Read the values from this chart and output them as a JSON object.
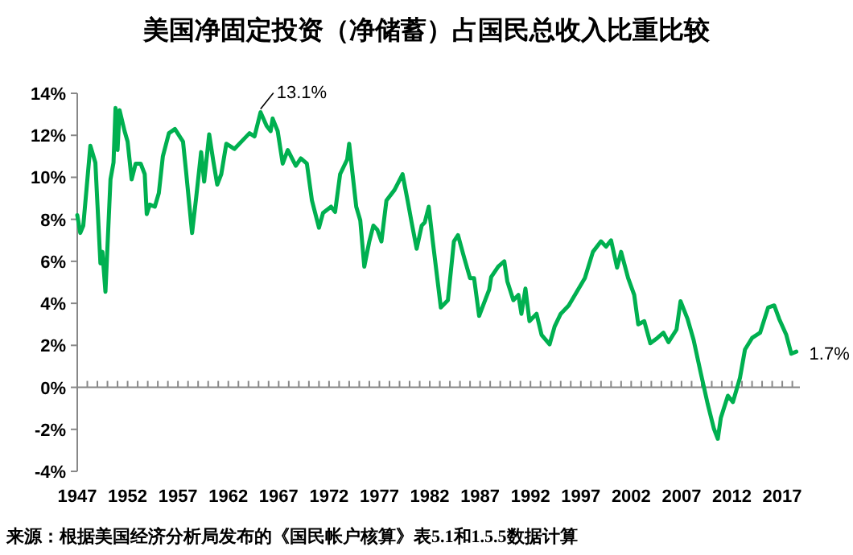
{
  "chart_data": {
    "type": "line",
    "title": "美国净固定投资（净储蓄）占国民总收入比重比较",
    "x": [
      1947,
      1947.3,
      1947.6,
      1948.3,
      1948.8,
      1949.3,
      1949.5,
      1949.8,
      1950.3,
      1950.6,
      1950.8,
      1951.0,
      1951.2,
      1951.7,
      1952.0,
      1952.4,
      1952.8,
      1953.3,
      1953.7,
      1953.9,
      1954.2,
      1954.7,
      1955.1,
      1955.5,
      1956.1,
      1956.7,
      1957.5,
      1957.8,
      1958.4,
      1958.8,
      1959.3,
      1959.6,
      1960.1,
      1960.5,
      1960.9,
      1961.3,
      1961.8,
      1962.6,
      1963.6,
      1964.1,
      1964.6,
      1965.2,
      1965.8,
      1966.2,
      1966.4,
      1966.9,
      1967.4,
      1967.9,
      1968.7,
      1969.2,
      1969.8,
      1970.3,
      1971.0,
      1971.4,
      1972.2,
      1972.6,
      1973.1,
      1973.8,
      1974.0,
      1974.7,
      1975.1,
      1975.5,
      1976.0,
      1976.4,
      1976.8,
      1977.2,
      1977.7,
      1978.5,
      1979.3,
      1979.8,
      1980.2,
      1980.7,
      1981.2,
      1981.5,
      1981.9,
      1982.3,
      1983.1,
      1983.8,
      1984.4,
      1984.8,
      1985.4,
      1986.0,
      1986.4,
      1986.9,
      1987.5,
      1987.9,
      1988.1,
      1988.8,
      1989.4,
      1989.7,
      1990.3,
      1990.8,
      1991.1,
      1991.5,
      1991.9,
      1992.6,
      1993.1,
      1993.9,
      1994.4,
      1995.0,
      1995.8,
      1996.6,
      1997.4,
      1998.2,
      1999.0,
      1999.5,
      2000.0,
      2000.6,
      2001.0,
      2001.7,
      2002.3,
      2002.7,
      2003.3,
      2003.9,
      2004.6,
      2005.2,
      2005.7,
      2006.5,
      2006.9,
      2007.6,
      2008.2,
      2008.9,
      2009.6,
      2010.2,
      2010.6,
      2010.9,
      2011.6,
      2012.1,
      2012.8,
      2013.3,
      2014.0,
      2014.8,
      2015.6,
      2016.2,
      2016.7,
      2017.4,
      2017.9,
      2018.4
    ],
    "series": [
      {
        "color": "#00b050",
        "values": [
          8.2,
          7.35,
          7.7,
          11.5,
          10.7,
          5.9,
          6.45,
          4.55,
          9.9,
          10.7,
          13.3,
          11.3,
          13.2,
          12.2,
          11.7,
          9.9,
          10.65,
          10.65,
          10.15,
          8.25,
          8.7,
          8.6,
          9.25,
          11.0,
          12.1,
          12.3,
          11.7,
          10.3,
          7.35,
          9.0,
          11.2,
          9.8,
          12.05,
          10.8,
          9.65,
          10.15,
          11.6,
          11.35,
          11.85,
          12.1,
          11.95,
          13.1,
          12.45,
          12.2,
          12.8,
          12.2,
          10.65,
          11.3,
          10.55,
          10.9,
          10.65,
          8.9,
          7.6,
          8.3,
          8.6,
          8.35,
          10.15,
          10.85,
          11.6,
          8.6,
          7.95,
          5.75,
          6.95,
          7.7,
          7.5,
          6.95,
          8.9,
          9.4,
          10.15,
          8.9,
          7.85,
          6.6,
          7.7,
          7.85,
          8.6,
          6.95,
          3.8,
          4.15,
          6.95,
          7.25,
          6.2,
          5.2,
          5.2,
          3.4,
          4.15,
          4.65,
          5.25,
          5.75,
          6.0,
          5.05,
          4.15,
          4.4,
          3.5,
          4.7,
          3.15,
          3.5,
          2.5,
          2.05,
          2.9,
          3.5,
          3.9,
          4.55,
          5.2,
          6.45,
          6.95,
          6.7,
          7.0,
          5.7,
          6.45,
          5.2,
          4.4,
          3.0,
          3.15,
          2.1,
          2.35,
          2.6,
          2.15,
          2.75,
          4.1,
          3.25,
          2.25,
          0.7,
          -0.8,
          -1.95,
          -2.45,
          -1.45,
          -0.4,
          -0.7,
          0.45,
          1.8,
          2.35,
          2.6,
          3.8,
          3.9,
          3.25,
          2.5,
          1.6,
          1.7
        ]
      }
    ],
    "xlim": [
      1947,
      2018.75
    ],
    "xticks": [
      {
        "value": 1947,
        "label": "1947"
      },
      {
        "value": 1948,
        "label": null
      },
      {
        "value": 1949,
        "label": null
      },
      {
        "value": 1950,
        "label": null
      },
      {
        "value": 1951,
        "label": null
      },
      {
        "value": 1952,
        "label": "1952"
      },
      {
        "value": 1953,
        "label": null
      },
      {
        "value": 1954,
        "label": null
      },
      {
        "value": 1955,
        "label": null
      },
      {
        "value": 1956,
        "label": null
      },
      {
        "value": 1957,
        "label": "1957"
      },
      {
        "value": 1958,
        "label": null
      },
      {
        "value": 1959,
        "label": null
      },
      {
        "value": 1960,
        "label": null
      },
      {
        "value": 1961,
        "label": null
      },
      {
        "value": 1962,
        "label": "1962"
      },
      {
        "value": 1963,
        "label": null
      },
      {
        "value": 1964,
        "label": null
      },
      {
        "value": 1965,
        "label": null
      },
      {
        "value": 1966,
        "label": null
      },
      {
        "value": 1967,
        "label": "1967"
      },
      {
        "value": 1968,
        "label": null
      },
      {
        "value": 1969,
        "label": null
      },
      {
        "value": 1970,
        "label": null
      },
      {
        "value": 1971,
        "label": null
      },
      {
        "value": 1972,
        "label": "1972"
      },
      {
        "value": 1973,
        "label": null
      },
      {
        "value": 1974,
        "label": null
      },
      {
        "value": 1975,
        "label": null
      },
      {
        "value": 1976,
        "label": null
      },
      {
        "value": 1977,
        "label": "1977"
      },
      {
        "value": 1978,
        "label": null
      },
      {
        "value": 1979,
        "label": null
      },
      {
        "value": 1980,
        "label": null
      },
      {
        "value": 1981,
        "label": null
      },
      {
        "value": 1982,
        "label": "1982"
      },
      {
        "value": 1983,
        "label": null
      },
      {
        "value": 1984,
        "label": null
      },
      {
        "value": 1985,
        "label": null
      },
      {
        "value": 1986,
        "label": null
      },
      {
        "value": 1987,
        "label": "1987"
      },
      {
        "value": 1988,
        "label": null
      },
      {
        "value": 1989,
        "label": null
      },
      {
        "value": 1990,
        "label": null
      },
      {
        "value": 1991,
        "label": null
      },
      {
        "value": 1992,
        "label": "1992"
      },
      {
        "value": 1993,
        "label": null
      },
      {
        "value": 1994,
        "label": null
      },
      {
        "value": 1995,
        "label": null
      },
      {
        "value": 1996,
        "label": null
      },
      {
        "value": 1997,
        "label": "1997"
      },
      {
        "value": 1998,
        "label": null
      },
      {
        "value": 1999,
        "label": null
      },
      {
        "value": 2000,
        "label": null
      },
      {
        "value": 2001,
        "label": null
      },
      {
        "value": 2002,
        "label": "2002"
      },
      {
        "value": 2003,
        "label": null
      },
      {
        "value": 2004,
        "label": null
      },
      {
        "value": 2005,
        "label": null
      },
      {
        "value": 2006,
        "label": null
      },
      {
        "value": 2007,
        "label": "2007"
      },
      {
        "value": 2008,
        "label": null
      },
      {
        "value": 2009,
        "label": null
      },
      {
        "value": 2010,
        "label": null
      },
      {
        "value": 2011,
        "label": null
      },
      {
        "value": 2012,
        "label": "2012"
      },
      {
        "value": 2013,
        "label": null
      },
      {
        "value": 2014,
        "label": null
      },
      {
        "value": 2015,
        "label": null
      },
      {
        "value": 2016,
        "label": null
      },
      {
        "value": 2017,
        "label": "2017"
      },
      {
        "value": 2018,
        "label": null
      }
    ],
    "ylim": [
      -4,
      14
    ],
    "yticks": [
      {
        "value": -4,
        "label": "-4%"
      },
      {
        "value": -2,
        "label": "-2%"
      },
      {
        "value": 0,
        "label": "0%"
      },
      {
        "value": 2,
        "label": "2%"
      },
      {
        "value": 4,
        "label": "4%"
      },
      {
        "value": 6,
        "label": "6%"
      },
      {
        "value": 8,
        "label": "8%"
      },
      {
        "value": 10,
        "label": "10%"
      },
      {
        "value": 12,
        "label": "12%"
      },
      {
        "value": 14,
        "label": "14%"
      }
    ],
    "marker": "none",
    "line_style": "solid",
    "annotations": [
      {
        "text": "13.1%",
        "x": 1965.2,
        "y": 13.1
      },
      {
        "text": "1.7%",
        "x": 2018.4,
        "y": 1.7
      },
      "来源：根据美国经济分析局发布的《国民帐户核算》表5.1和1.5.5数据计算"
    ]
  }
}
